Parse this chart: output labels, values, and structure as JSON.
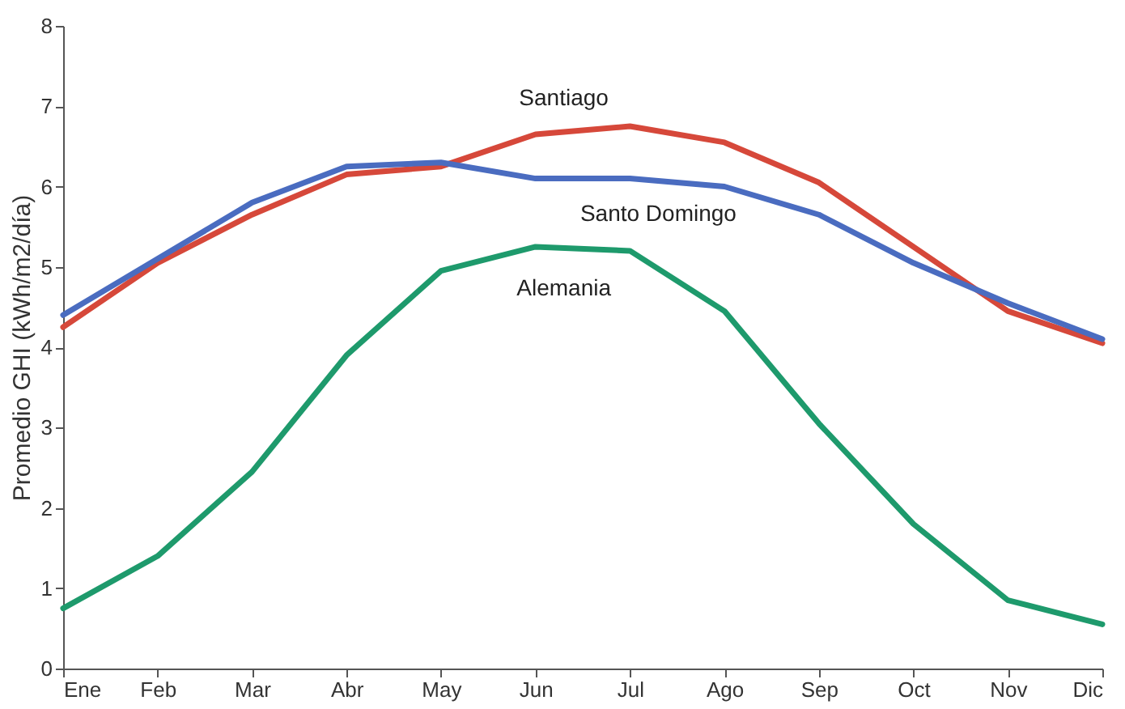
{
  "chart_data": {
    "type": "line",
    "ylabel": "Promedio GHI (kWh/m2/día)",
    "categories": [
      "Ene",
      "Feb",
      "Mar",
      "Abr",
      "May",
      "Jun",
      "Jul",
      "Ago",
      "Sep",
      "Oct",
      "Nov",
      "Dic"
    ],
    "series": [
      {
        "name": "Santiago",
        "color": "#d6483a",
        "values": [
          4.25,
          5.05,
          5.65,
          6.15,
          6.25,
          6.65,
          6.75,
          6.55,
          6.05,
          5.25,
          4.45,
          4.05
        ]
      },
      {
        "name": "Santo Domingo",
        "color": "#4a6cc0",
        "values": [
          4.4,
          5.1,
          5.8,
          6.25,
          6.3,
          6.1,
          6.1,
          6.0,
          5.65,
          5.05,
          4.55,
          4.1
        ]
      },
      {
        "name": "Alemania",
        "color": "#1e9a6c",
        "values": [
          0.75,
          1.4,
          2.45,
          3.9,
          4.95,
          5.25,
          5.2,
          4.45,
          3.05,
          1.8,
          0.85,
          0.55
        ]
      }
    ],
    "ylim": [
      0,
      8
    ],
    "yticks": [
      0,
      1,
      2,
      3,
      4,
      5,
      6,
      7,
      8
    ],
    "grid": false,
    "legend": false,
    "marker": "none",
    "line_style": "solid"
  }
}
